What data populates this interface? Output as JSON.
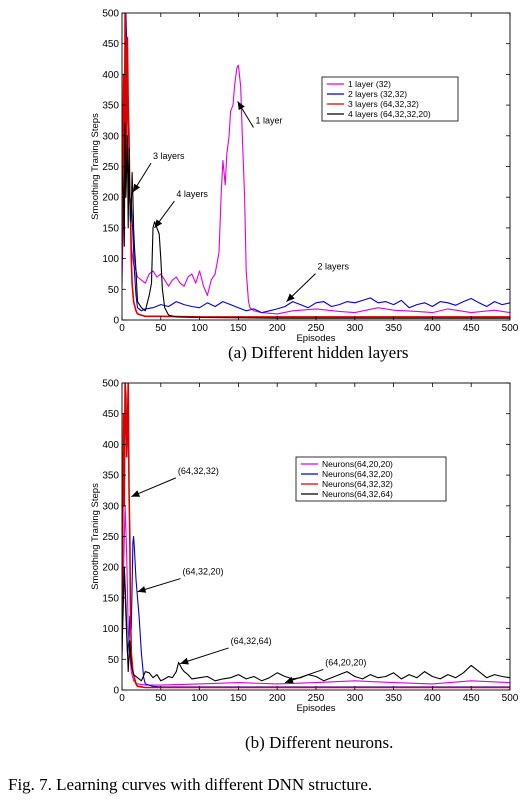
{
  "figure": {
    "caption": "Fig. 7.   Learning curves with different DNN structure.",
    "subcaption_a": "(a)  Different hidden layers",
    "subcaption_b": "(b)  Different neurons."
  },
  "chart_data": [
    {
      "type": "line",
      "xlabel": "Episodes",
      "ylabel": "Smoothing Traning Steps",
      "xlim": [
        0,
        500
      ],
      "ylim": [
        0,
        500
      ],
      "xticks": [
        "0",
        "50",
        "100",
        "150",
        "200",
        "250",
        "300",
        "350",
        "400",
        "450",
        "500"
      ],
      "yticks": [
        "0",
        "50",
        "100",
        "150",
        "200",
        "250",
        "300",
        "350",
        "400",
        "450",
        "500"
      ],
      "legend_position": "top-right",
      "series": [
        {
          "name": "1 layer (32)",
          "color": "#e000e0",
          "x": [
            0,
            3,
            5,
            8,
            10,
            12,
            15,
            18,
            20,
            25,
            30,
            35,
            40,
            45,
            50,
            55,
            60,
            65,
            70,
            75,
            80,
            85,
            90,
            95,
            100,
            105,
            110,
            115,
            120,
            125,
            128,
            130,
            133,
            135,
            138,
            140,
            143,
            145,
            148,
            150,
            153,
            155,
            158,
            160,
            163,
            165,
            170,
            180,
            200,
            220,
            250,
            280,
            300,
            330,
            350,
            380,
            400,
            420,
            450,
            480,
            500
          ],
          "y": [
            60,
            240,
            480,
            350,
            200,
            120,
            90,
            80,
            70,
            65,
            60,
            75,
            80,
            70,
            75,
            65,
            55,
            65,
            70,
            60,
            55,
            70,
            75,
            60,
            80,
            55,
            40,
            65,
            75,
            110,
            210,
            260,
            220,
            270,
            300,
            340,
            350,
            380,
            410,
            415,
            380,
            300,
            200,
            80,
            30,
            20,
            15,
            12,
            10,
            15,
            18,
            14,
            12,
            20,
            16,
            14,
            12,
            18,
            12,
            16,
            12
          ]
        },
        {
          "name": "2 layers (32,32)",
          "color": "#0000dd",
          "x": [
            0,
            3,
            5,
            8,
            10,
            12,
            14,
            16,
            18,
            20,
            25,
            30,
            40,
            50,
            60,
            70,
            80,
            90,
            100,
            110,
            120,
            130,
            140,
            150,
            160,
            170,
            180,
            190,
            200,
            210,
            220,
            230,
            240,
            250,
            260,
            270,
            280,
            290,
            300,
            310,
            320,
            330,
            340,
            350,
            360,
            370,
            380,
            390,
            400,
            410,
            420,
            430,
            440,
            450,
            460,
            470,
            480,
            490,
            500
          ],
          "y": [
            100,
            300,
            500,
            350,
            200,
            190,
            140,
            80,
            40,
            20,
            15,
            18,
            20,
            25,
            22,
            30,
            25,
            22,
            20,
            28,
            22,
            30,
            25,
            20,
            15,
            18,
            12,
            15,
            18,
            22,
            30,
            25,
            20,
            28,
            30,
            22,
            25,
            30,
            28,
            32,
            36,
            28,
            30,
            25,
            32,
            20,
            25,
            28,
            22,
            30,
            28,
            24,
            30,
            35,
            28,
            22,
            30,
            25,
            28
          ]
        },
        {
          "name": "3 layers (64,32,32)",
          "color": "#dd0000",
          "x": [
            0,
            2,
            3,
            4,
            5,
            6,
            7,
            8,
            9,
            10,
            11,
            12,
            13,
            15,
            18,
            20,
            25,
            30,
            50,
            100,
            200,
            300,
            400,
            500
          ],
          "y": [
            100,
            400,
            200,
            500,
            400,
            250,
            460,
            350,
            300,
            200,
            180,
            100,
            60,
            30,
            15,
            10,
            8,
            6,
            6,
            5,
            5,
            5,
            5,
            5
          ],
          "w": 1.6
        },
        {
          "name": "4 layers (64,32,32,20)",
          "color": "#000000",
          "x": [
            0,
            2,
            3,
            4,
            5,
            6,
            7,
            8,
            9,
            10,
            11,
            12,
            13,
            14,
            15,
            16,
            18,
            20,
            25,
            30,
            35,
            38,
            40,
            42,
            45,
            48,
            50,
            52,
            55,
            60,
            70,
            100,
            200,
            300,
            400,
            500
          ],
          "y": [
            250,
            200,
            120,
            320,
            200,
            250,
            300,
            150,
            280,
            200,
            160,
            180,
            240,
            200,
            150,
            120,
            80,
            30,
            20,
            15,
            40,
            60,
            150,
            160,
            150,
            140,
            100,
            50,
            20,
            8,
            5,
            4,
            3,
            3,
            3,
            3
          ]
        }
      ],
      "annotations": [
        {
          "text": "1 layer",
          "x": 149,
          "y": 356,
          "tx": 172,
          "ty": 320
        },
        {
          "text": "3 layers",
          "x": 14,
          "y": 208,
          "tx": 40,
          "ty": 262
        },
        {
          "text": "4 layers",
          "x": 42,
          "y": 150,
          "tx": 70,
          "ty": 200
        },
        {
          "text": "2 layers",
          "x": 212,
          "y": 30,
          "tx": 252,
          "ty": 82
        }
      ]
    },
    {
      "type": "line",
      "xlabel": "Episodes",
      "ylabel": "Smoothing Traning Steps",
      "xlim": [
        0,
        500
      ],
      "ylim": [
        0,
        500
      ],
      "xticks": [
        "0",
        "50",
        "100",
        "150",
        "200",
        "250",
        "300",
        "350",
        "400",
        "450",
        "500"
      ],
      "yticks": [
        "0",
        "50",
        "100",
        "150",
        "200",
        "250",
        "300",
        "350",
        "400",
        "450",
        "500"
      ],
      "legend_position": "top-right",
      "series": [
        {
          "name": "Neurons(64,20,20)",
          "color": "#e000e0",
          "x": [
            0,
            2,
            4,
            6,
            8,
            10,
            12,
            15,
            20,
            30,
            50,
            100,
            150,
            200,
            250,
            300,
            350,
            400,
            450,
            500
          ],
          "y": [
            50,
            200,
            300,
            220,
            100,
            60,
            30,
            15,
            10,
            8,
            8,
            10,
            12,
            10,
            12,
            15,
            12,
            10,
            15,
            12
          ]
        },
        {
          "name": "Neurons(64,32,20)",
          "color": "#0000dd",
          "x": [
            0,
            3,
            5,
            7,
            9,
            10,
            12,
            14,
            15,
            16,
            18,
            20,
            22,
            25,
            28,
            30,
            35,
            40,
            50,
            60,
            80,
            100,
            150,
            200,
            250,
            300,
            350,
            400,
            450,
            500
          ],
          "y": [
            100,
            200,
            120,
            60,
            80,
            120,
            100,
            240,
            250,
            230,
            180,
            150,
            120,
            60,
            20,
            10,
            8,
            6,
            5,
            5,
            5,
            5,
            5,
            5,
            5,
            5,
            5,
            5,
            5,
            5
          ]
        },
        {
          "name": "Neurons(64,32,32)",
          "color": "#dd0000",
          "x": [
            0,
            2,
            3,
            4,
            5,
            6,
            7,
            8,
            9,
            10,
            11,
            12,
            14,
            16,
            18,
            20,
            25,
            30,
            50,
            100,
            200,
            300,
            400,
            500
          ],
          "y": [
            100,
            450,
            300,
            500,
            480,
            380,
            420,
            500,
            330,
            250,
            130,
            60,
            30,
            20,
            10,
            6,
            5,
            4,
            4,
            4,
            4,
            4,
            4,
            4
          ],
          "w": 1.6
        },
        {
          "name": "Neurons(64,32,64)",
          "color": "#000000",
          "x": [
            0,
            3,
            5,
            8,
            10,
            12,
            15,
            20,
            25,
            30,
            35,
            40,
            45,
            50,
            55,
            60,
            65,
            70,
            73,
            75,
            77,
            80,
            85,
            90,
            100,
            110,
            120,
            130,
            140,
            150,
            160,
            170,
            180,
            190,
            200,
            210,
            220,
            230,
            240,
            250,
            260,
            270,
            280,
            290,
            300,
            310,
            320,
            330,
            340,
            350,
            360,
            370,
            380,
            390,
            400,
            410,
            420,
            430,
            440,
            450,
            460,
            470,
            480,
            490,
            500
          ],
          "y": [
            60,
            200,
            140,
            30,
            80,
            40,
            25,
            20,
            15,
            30,
            28,
            20,
            25,
            15,
            18,
            22,
            20,
            30,
            45,
            40,
            35,
            30,
            25,
            18,
            20,
            22,
            15,
            18,
            20,
            25,
            18,
            22,
            15,
            20,
            28,
            22,
            18,
            20,
            25,
            22,
            15,
            20,
            25,
            30,
            22,
            18,
            25,
            20,
            22,
            28,
            18,
            25,
            20,
            30,
            22,
            18,
            25,
            20,
            28,
            40,
            30,
            20,
            25,
            22,
            20
          ]
        }
      ],
      "annotations": [
        {
          "text": "(64,32,32)",
          "x": 12,
          "y": 315,
          "tx": 72,
          "ty": 352
        },
        {
          "text": "(64,32,20)",
          "x": 20,
          "y": 160,
          "tx": 78,
          "ty": 188
        },
        {
          "text": "(64,32,64)",
          "x": 75,
          "y": 43,
          "tx": 140,
          "ty": 75
        },
        {
          "text": "(64,20,20)",
          "x": 210,
          "y": 12,
          "tx": 262,
          "ty": 40
        }
      ]
    }
  ]
}
